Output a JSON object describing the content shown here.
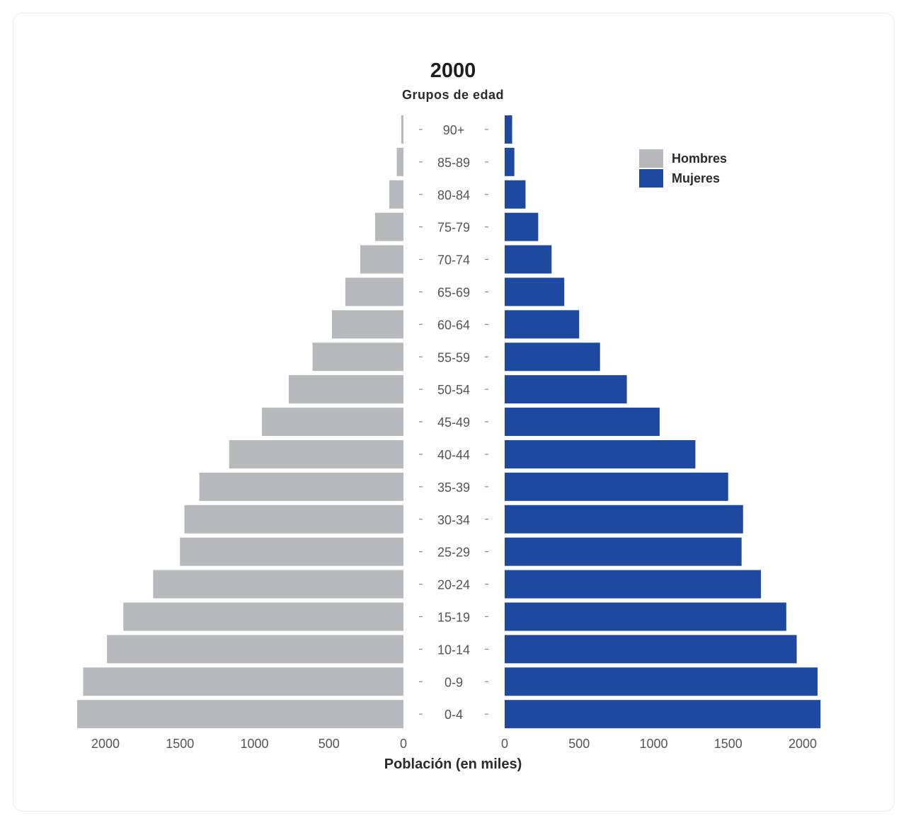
{
  "chart_data": {
    "type": "bar",
    "subtype": "population-pyramid",
    "title": "2000",
    "subtitle": "Grupos de edad",
    "xlabel": "Población (en miles)",
    "categories": [
      "0-4",
      "0-9",
      "10-14",
      "15-19",
      "20-24",
      "25-29",
      "30-34",
      "35-39",
      "40-44",
      "45-49",
      "50-54",
      "55-59",
      "60-64",
      "65-69",
      "70-74",
      "75-79",
      "80-84",
      "85-89",
      "90+"
    ],
    "series": [
      {
        "name": "Hombres",
        "color": "#b8b9bc",
        "values": [
          2190,
          2150,
          1990,
          1880,
          1680,
          1500,
          1470,
          1370,
          1170,
          950,
          770,
          610,
          480,
          390,
          290,
          190,
          95,
          45,
          15
        ]
      },
      {
        "name": "Mujeres",
        "color": "#1d4aa0",
        "values": [
          2120,
          2100,
          1960,
          1890,
          1720,
          1590,
          1600,
          1500,
          1280,
          1040,
          820,
          640,
          500,
          400,
          315,
          225,
          140,
          65,
          50
        ]
      }
    ],
    "xlim": [
      0,
      2200
    ],
    "ticks": [
      2000,
      1500,
      1000,
      500,
      0
    ],
    "ticks_right": [
      0,
      500,
      1000,
      1500,
      2000
    ],
    "legend": "top-right"
  }
}
